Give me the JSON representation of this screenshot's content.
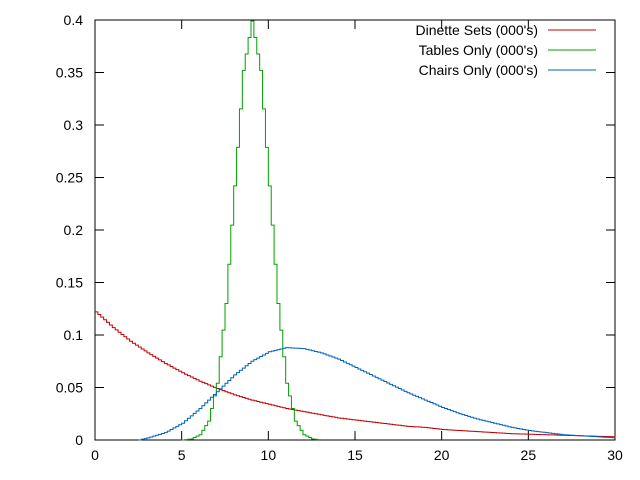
{
  "chart_data": {
    "type": "line",
    "step": true,
    "xlim": [
      0,
      30
    ],
    "ylim": [
      0,
      0.4
    ],
    "x_ticks": [
      0,
      5,
      10,
      15,
      20,
      25,
      30
    ],
    "x_tick_labels": [
      "0",
      "5",
      "10",
      "15",
      "20",
      "25",
      "30"
    ],
    "y_ticks": [
      0,
      0.05,
      0.1,
      0.15,
      0.2,
      0.25,
      0.3,
      0.35,
      0.4
    ],
    "y_tick_labels": [
      "0",
      "0.05",
      "0.1",
      "0.15",
      "0.2",
      "0.25",
      "0.3",
      "0.35",
      "0.4"
    ],
    "grid": false,
    "legend_position": "top-right",
    "series": [
      {
        "name": "Dinette Sets (000's)",
        "color": "#c00000",
        "x": [
          0,
          1,
          2,
          3,
          4,
          5,
          6,
          7,
          8,
          9,
          10,
          11,
          12,
          13,
          14,
          15,
          16,
          17,
          18,
          19,
          20,
          21,
          22,
          23,
          24,
          25,
          26,
          27,
          28,
          29,
          30
        ],
        "y": [
          0.122,
          0.107,
          0.094,
          0.083,
          0.073,
          0.064,
          0.056,
          0.049,
          0.043,
          0.038,
          0.034,
          0.03,
          0.027,
          0.024,
          0.021,
          0.019,
          0.017,
          0.015,
          0.013,
          0.012,
          0.01,
          0.009,
          0.008,
          0.007,
          0.006,
          0.0055,
          0.005,
          0.0045,
          0.004,
          0.0035,
          0.003
        ]
      },
      {
        "name": "Tables Only (000's)",
        "color": "#00a000",
        "x": [
          5,
          5.5,
          6,
          6.5,
          7,
          7.5,
          8,
          8.5,
          9,
          9.5,
          10,
          10.5,
          11,
          11.5,
          12,
          12.5,
          13
        ],
        "y": [
          0,
          0.001,
          0.005,
          0.018,
          0.054,
          0.13,
          0.242,
          0.352,
          0.399,
          0.352,
          0.242,
          0.13,
          0.054,
          0.018,
          0.005,
          0.001,
          0
        ]
      },
      {
        "name": "Chairs Only (000's)",
        "color": "#0060c0",
        "x": [
          2.5,
          3,
          4,
          5,
          6,
          7,
          8,
          9,
          10,
          11,
          12,
          13,
          14,
          15,
          16,
          17,
          18,
          19,
          20,
          21,
          22,
          23,
          24,
          25,
          26,
          27,
          28,
          29,
          30
        ],
        "y": [
          0,
          0.002,
          0.007,
          0.016,
          0.03,
          0.046,
          0.062,
          0.075,
          0.084,
          0.088,
          0.087,
          0.083,
          0.077,
          0.069,
          0.061,
          0.053,
          0.045,
          0.038,
          0.031,
          0.025,
          0.02,
          0.016,
          0.012,
          0.009,
          0.007,
          0.005,
          0.004,
          0.003,
          0.002
        ]
      }
    ]
  }
}
